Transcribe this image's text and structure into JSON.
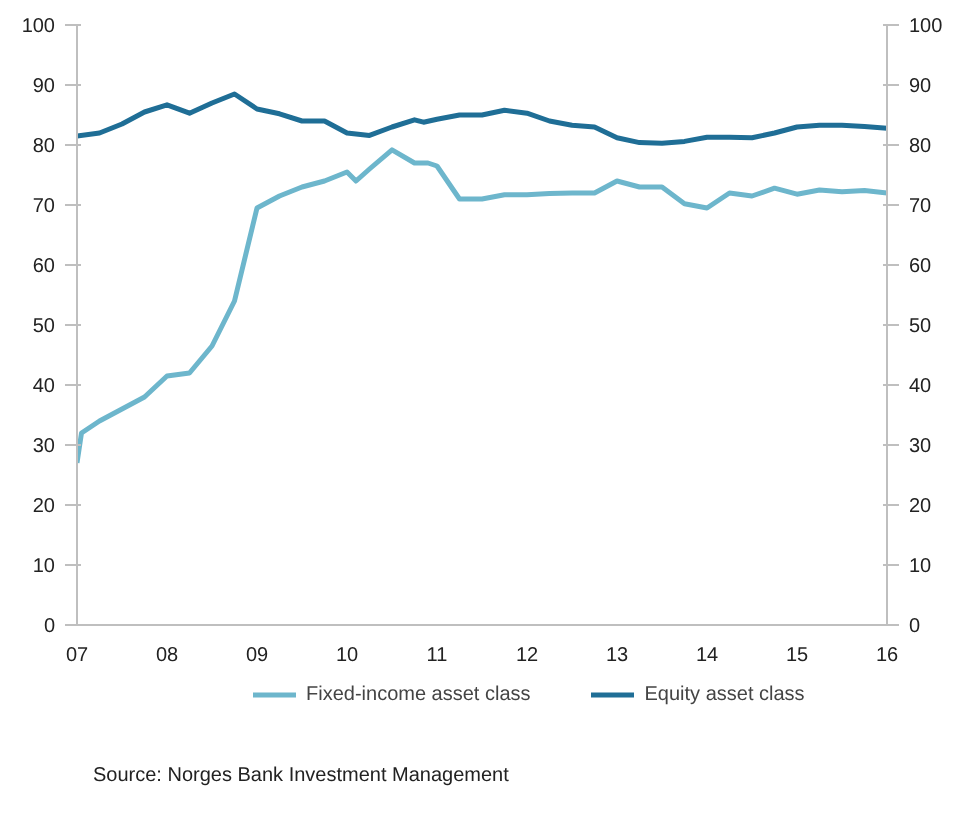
{
  "chart_data": {
    "type": "line",
    "xlim": [
      2007,
      2016
    ],
    "xticks": [
      {
        "value": 2007,
        "label": "07"
      },
      {
        "value": 2008,
        "label": "08"
      },
      {
        "value": 2009,
        "label": "09"
      },
      {
        "value": 2010,
        "label": "10"
      },
      {
        "value": 2011,
        "label": "11"
      },
      {
        "value": 2012,
        "label": "12"
      },
      {
        "value": 2013,
        "label": "13"
      },
      {
        "value": 2014,
        "label": "14"
      },
      {
        "value": 2015,
        "label": "15"
      },
      {
        "value": 2016,
        "label": "16"
      }
    ],
    "ylim": [
      0,
      100
    ],
    "yticks": [
      0,
      10,
      20,
      30,
      40,
      50,
      60,
      70,
      80,
      90,
      100
    ],
    "y2lim": [
      0,
      100
    ],
    "y2ticks": [
      0,
      10,
      20,
      30,
      40,
      50,
      60,
      70,
      80,
      90,
      100
    ],
    "grid": false,
    "legend": "bottom",
    "annotations": [
      "Source: Norges Bank Investment Management"
    ],
    "series": [
      {
        "name": "Fixed-income asset class",
        "color": "#6db6cc",
        "x": [
          2007.0,
          2007.05,
          2007.25,
          2007.5,
          2007.75,
          2008.0,
          2008.25,
          2008.5,
          2008.75,
          2009.0,
          2009.25,
          2009.5,
          2009.75,
          2010.0,
          2010.1,
          2010.25,
          2010.5,
          2010.75,
          2010.9,
          2011.0,
          2011.25,
          2011.5,
          2011.75,
          2012.0,
          2012.25,
          2012.5,
          2012.75,
          2013.0,
          2013.25,
          2013.5,
          2013.75,
          2014.0,
          2014.25,
          2014.5,
          2014.75,
          2015.0,
          2015.25,
          2015.5,
          2015.75,
          2016.0
        ],
        "values": [
          27,
          32,
          34,
          36,
          38,
          41.5,
          42,
          46.5,
          54,
          69.5,
          71.5,
          73,
          74,
          75.5,
          74,
          76,
          79.2,
          77,
          77,
          76.5,
          71,
          71,
          71.7,
          71.7,
          71.9,
          72,
          72,
          74,
          73,
          73,
          70.2,
          69.5,
          72,
          71.5,
          72.8,
          71.8,
          72.5,
          72.2,
          72.4,
          72
        ]
      },
      {
        "name": "Equity asset class",
        "color": "#1f6e96",
        "x": [
          2007.0,
          2007.25,
          2007.5,
          2007.75,
          2008.0,
          2008.25,
          2008.5,
          2008.75,
          2009.0,
          2009.25,
          2009.5,
          2009.75,
          2010.0,
          2010.25,
          2010.5,
          2010.75,
          2010.85,
          2011.0,
          2011.25,
          2011.5,
          2011.75,
          2012.0,
          2012.25,
          2012.5,
          2012.75,
          2013.0,
          2013.25,
          2013.5,
          2013.75,
          2014.0,
          2014.25,
          2014.5,
          2014.75,
          2015.0,
          2015.25,
          2015.5,
          2015.75,
          2016.0
        ],
        "values": [
          81.5,
          82,
          83.5,
          85.5,
          86.7,
          85.3,
          87,
          88.5,
          86,
          85.2,
          84,
          84,
          82,
          81.6,
          83,
          84.2,
          83.8,
          84.3,
          85,
          85,
          85.8,
          85.3,
          84,
          83.3,
          83,
          81.2,
          80.4,
          80.3,
          80.6,
          81.3,
          81.3,
          81.2,
          82,
          83,
          83.3,
          83.3,
          83.1,
          82.8
        ]
      }
    ]
  }
}
